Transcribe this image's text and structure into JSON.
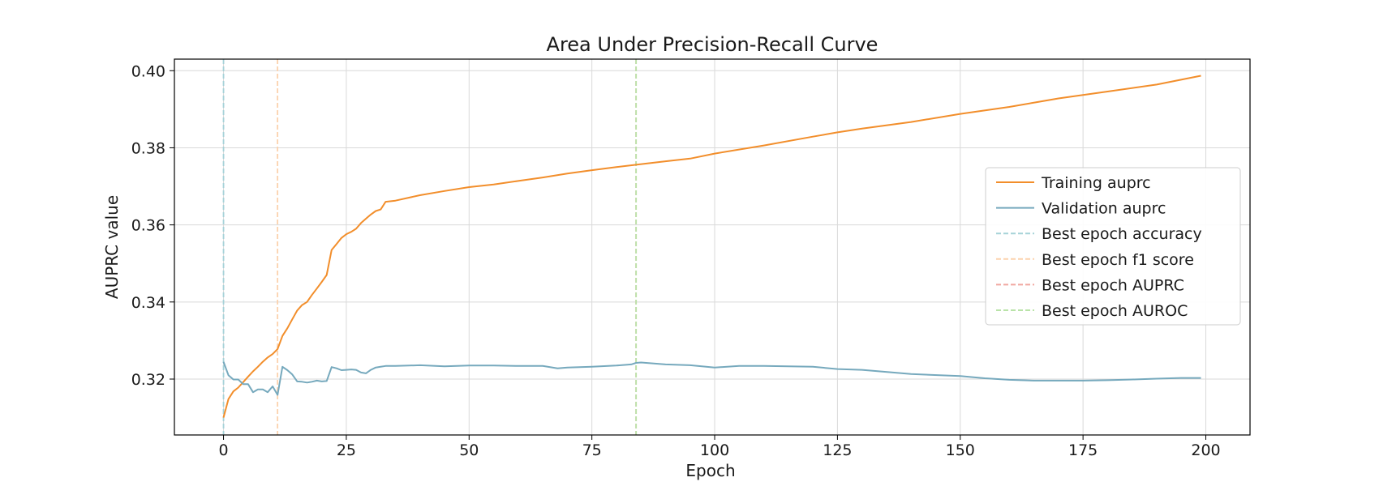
{
  "chart_data": {
    "type": "line",
    "title": "Area Under Precision-Recall Curve",
    "xlabel": "Epoch",
    "ylabel": "AUPRC value",
    "xlim": [
      -10,
      209
    ],
    "ylim": [
      0.3055,
      0.403
    ],
    "xticks": [
      0,
      25,
      50,
      75,
      100,
      125,
      150,
      175,
      200
    ],
    "yticks": [
      0.32,
      0.34,
      0.36,
      0.38,
      0.4
    ],
    "ytick_labels": [
      "0.32",
      "0.34",
      "0.36",
      "0.38",
      "0.40"
    ],
    "grid": true,
    "legend_position": "center-right",
    "series": [
      {
        "name": "Training auprc",
        "color": "#f28e2b",
        "x": [
          0,
          1,
          2,
          3,
          4,
          5,
          6,
          7,
          8,
          9,
          10,
          11,
          12,
          13,
          14,
          15,
          16,
          17,
          18,
          19,
          20,
          21,
          22,
          23,
          24,
          25,
          26,
          27,
          28,
          29,
          30,
          31,
          32,
          33,
          35,
          40,
          45,
          50,
          55,
          60,
          65,
          70,
          75,
          80,
          84,
          90,
          95,
          100,
          110,
          120,
          125,
          130,
          140,
          150,
          160,
          170,
          180,
          190,
          199
        ],
        "values": [
          0.31,
          0.3148,
          0.3168,
          0.3178,
          0.3192,
          0.3206,
          0.322,
          0.3232,
          0.3245,
          0.3256,
          0.3265,
          0.3278,
          0.3312,
          0.3332,
          0.3355,
          0.3378,
          0.3392,
          0.34,
          0.3418,
          0.3435,
          0.3452,
          0.347,
          0.3535,
          0.355,
          0.3566,
          0.3576,
          0.3582,
          0.359,
          0.3605,
          0.3616,
          0.3627,
          0.3636,
          0.364,
          0.366,
          0.3663,
          0.3677,
          0.3688,
          0.3698,
          0.3705,
          0.3714,
          0.3723,
          0.3733,
          0.3742,
          0.375,
          0.3756,
          0.3765,
          0.3772,
          0.3785,
          0.3806,
          0.3829,
          0.384,
          0.385,
          0.3867,
          0.3888,
          0.3906,
          0.3928,
          0.3946,
          0.3964,
          0.3987
        ]
      },
      {
        "name": "Validation auprc",
        "color": "#76a9bd",
        "x": [
          0,
          1,
          2,
          3,
          4,
          5,
          6,
          7,
          8,
          9,
          10,
          11,
          12,
          13,
          14,
          15,
          16,
          17,
          18,
          19,
          20,
          21,
          22,
          23,
          24,
          25,
          26,
          27,
          28,
          29,
          30,
          31,
          32,
          33,
          35,
          40,
          45,
          50,
          55,
          60,
          65,
          68,
          70,
          75,
          80,
          83,
          84,
          85,
          90,
          95,
          100,
          105,
          110,
          120,
          125,
          130,
          140,
          150,
          155,
          160,
          165,
          170,
          175,
          180,
          185,
          190,
          195,
          199
        ],
        "values": [
          0.3245,
          0.321,
          0.3199,
          0.3199,
          0.3187,
          0.3187,
          0.3166,
          0.3173,
          0.3173,
          0.3166,
          0.3181,
          0.3159,
          0.3232,
          0.3223,
          0.3212,
          0.3194,
          0.3193,
          0.3191,
          0.3193,
          0.3196,
          0.3194,
          0.3195,
          0.3231,
          0.3228,
          0.3223,
          0.3224,
          0.3225,
          0.3224,
          0.3217,
          0.3215,
          0.3224,
          0.323,
          0.3232,
          0.3234,
          0.3234,
          0.3236,
          0.3233,
          0.3235,
          0.3235,
          0.3234,
          0.3234,
          0.3228,
          0.323,
          0.3232,
          0.3235,
          0.3238,
          0.3242,
          0.3243,
          0.3238,
          0.3236,
          0.323,
          0.3234,
          0.3234,
          0.3232,
          0.3226,
          0.3224,
          0.3213,
          0.3208,
          0.3202,
          0.3198,
          0.3196,
          0.3196,
          0.3196,
          0.3197,
          0.3199,
          0.3201,
          0.3203,
          0.3203
        ]
      }
    ],
    "vlines": [
      {
        "name": "Best epoch accuracy",
        "x": 0,
        "color": "#a6d2d8"
      },
      {
        "name": "Best epoch f1 score",
        "x": 11,
        "color": "#fcd2ad"
      },
      {
        "name": "Best epoch AUPRC",
        "x": 84,
        "color": "#f0a7a0"
      },
      {
        "name": "Best epoch AUROC",
        "x": 84,
        "color": "#b9e3a8"
      }
    ]
  }
}
